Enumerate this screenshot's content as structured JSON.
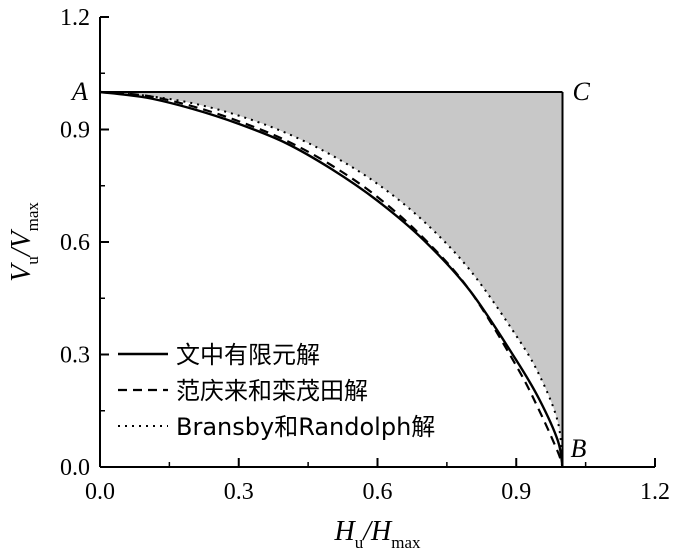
{
  "chart_data": {
    "type": "line",
    "xlabel": {
      "main": "H",
      "sub": "u",
      "sep": "/",
      "main2": "H",
      "sub2": "max"
    },
    "ylabel": {
      "main": "V",
      "sub": "u",
      "sep": "/",
      "main2": "V",
      "sub2": "max"
    },
    "xlim": [
      0,
      1.2
    ],
    "ylim": [
      0,
      1.2
    ],
    "xticks": [
      "0.0",
      "0.3",
      "0.6",
      "0.9",
      "1.2"
    ],
    "yticks": [
      "0.0",
      "0.3",
      "0.6",
      "0.9",
      "1.2"
    ],
    "grid": false,
    "legend_position": "bottom-left",
    "points": [
      {
        "label": "A",
        "x": 0,
        "y": 1.0
      },
      {
        "label": "C",
        "x": 1.0,
        "y": 1.0
      },
      {
        "label": "B",
        "x": 1.0,
        "y": 0
      }
    ],
    "shaded_region": {
      "description_from_legend": false,
      "color": "#c8c8c8"
    },
    "series": [
      {
        "name": "文中有限元解",
        "style": "solid",
        "x": [
          0,
          0.1,
          0.2,
          0.3,
          0.4,
          0.5,
          0.6,
          0.7,
          0.8,
          0.9,
          0.95,
          0.99,
          1.0
        ],
        "y": [
          1.0,
          0.985,
          0.955,
          0.915,
          0.865,
          0.795,
          0.71,
          0.605,
          0.47,
          0.285,
          0.18,
          0.07,
          0.0
        ]
      },
      {
        "name": "范庆来和栾茂田解",
        "style": "dashed",
        "x": [
          0,
          0.1,
          0.2,
          0.3,
          0.4,
          0.5,
          0.6,
          0.7,
          0.8,
          0.9,
          0.95,
          0.99,
          1.0
        ],
        "y": [
          1.0,
          0.99,
          0.962,
          0.922,
          0.872,
          0.805,
          0.72,
          0.61,
          0.47,
          0.27,
          0.15,
          0.04,
          0.0
        ]
      },
      {
        "name": "Bransby和Randolph解",
        "style": "dotted",
        "x": [
          0,
          0.1,
          0.2,
          0.3,
          0.4,
          0.5,
          0.6,
          0.7,
          0.8,
          0.9,
          0.95,
          0.99,
          1.0
        ],
        "y": [
          1.0,
          0.99,
          0.97,
          0.937,
          0.892,
          0.832,
          0.755,
          0.655,
          0.525,
          0.35,
          0.245,
          0.12,
          0.0
        ]
      }
    ]
  },
  "colors": {
    "line": "#000000",
    "fill": "#c8c8c8",
    "background": "#ffffff"
  }
}
